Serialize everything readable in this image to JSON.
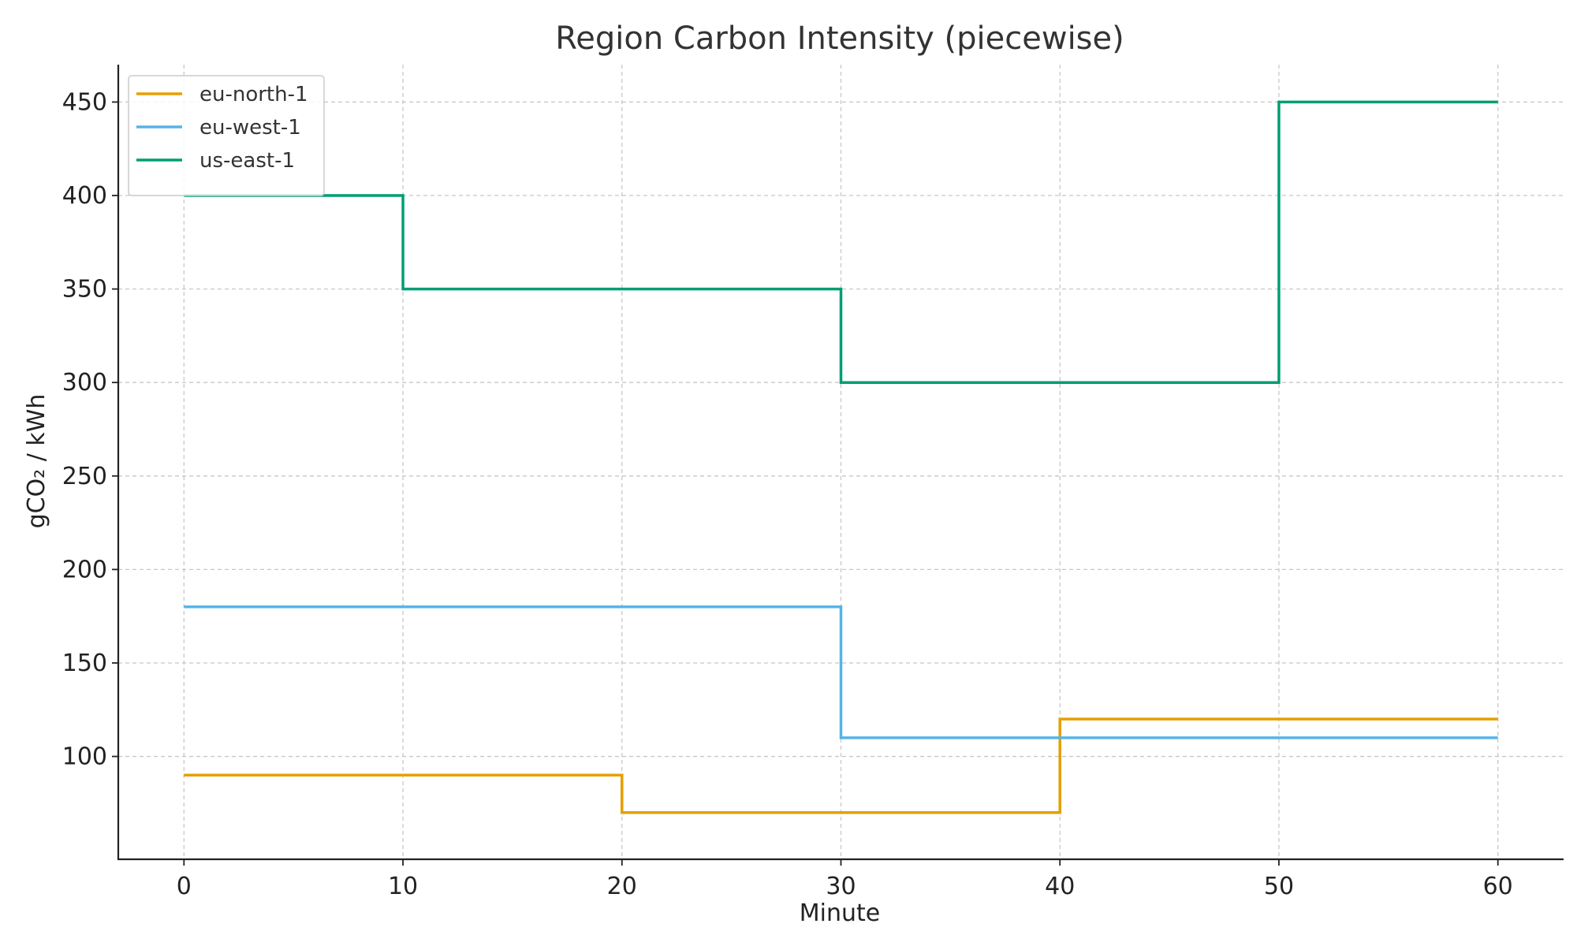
{
  "chart_data": {
    "type": "line",
    "step": "post",
    "title": "Region Carbon Intensity (piecewise)",
    "xlabel": "Minute",
    "ylabel": "gCO₂ / kWh",
    "xlim": [
      -3,
      63
    ],
    "ylim": [
      45,
      470
    ],
    "xticks": [
      0,
      10,
      20,
      30,
      40,
      50,
      60
    ],
    "yticks": [
      100,
      150,
      200,
      250,
      300,
      350,
      400,
      450
    ],
    "grid": true,
    "legend_position": "top-left",
    "series": [
      {
        "name": "eu-north-1",
        "color": "#E69F00",
        "x": [
          0,
          20,
          40,
          60
        ],
        "y": [
          90,
          70,
          120,
          120
        ]
      },
      {
        "name": "eu-west-1",
        "color": "#56B4E9",
        "x": [
          0,
          30,
          60
        ],
        "y": [
          180,
          110,
          110
        ]
      },
      {
        "name": "us-east-1",
        "color": "#009E73",
        "x": [
          0,
          10,
          30,
          50,
          60
        ],
        "y": [
          400,
          350,
          300,
          450,
          450
        ]
      }
    ]
  }
}
